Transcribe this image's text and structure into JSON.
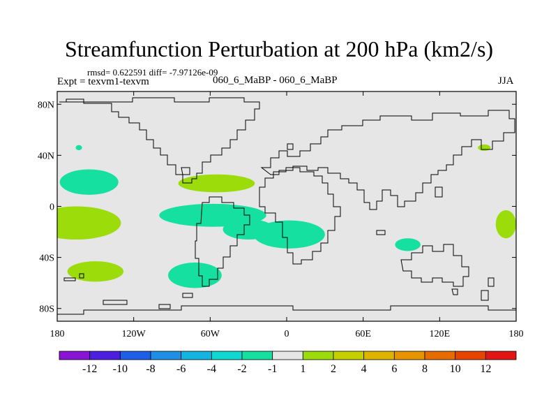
{
  "chart_data": {
    "type": "heatmap",
    "title": "Streamfunction Perturbation at 200 hPa (km2/s)",
    "stats_text": "rmsd= 0.622591  diff= -7.97126e-09",
    "experiment_label": "Expt = texvm1-texvm",
    "case_label": "060_6_MaBP - 060_6_MaBP",
    "season": "JJA",
    "projection": "cylindrical equidistant, 180 to 180 longitude",
    "x_range": [
      -180,
      180
    ],
    "y_range": [
      -90,
      90
    ],
    "x_ticks": [
      {
        "value": -180,
        "label": "180"
      },
      {
        "value": -120,
        "label": "120W"
      },
      {
        "value": -60,
        "label": "60W"
      },
      {
        "value": 0,
        "label": "0"
      },
      {
        "value": 60,
        "label": "60E"
      },
      {
        "value": 120,
        "label": "120E"
      },
      {
        "value": 180,
        "label": "180"
      }
    ],
    "y_ticks": [
      {
        "value": 80,
        "label": "80N"
      },
      {
        "value": 40,
        "label": "40N"
      },
      {
        "value": 0,
        "label": "0"
      },
      {
        "value": -40,
        "label": "40S"
      },
      {
        "value": -80,
        "label": "80S"
      }
    ],
    "background_class": "-1 to 1",
    "background_color": "#e6e6e6",
    "colorbar": {
      "colors": [
        "#8a14d6",
        "#4b1ee0",
        "#1e5ee8",
        "#1f8fe6",
        "#14b4e0",
        "#10d8d0",
        "#15e0a0",
        "#e6e6e6",
        "#9bdc0a",
        "#c4d000",
        "#deb400",
        "#e69400",
        "#e66c00",
        "#e64400",
        "#e21414"
      ],
      "labels": [
        "-12",
        "-10",
        "-8",
        "-6",
        "-4",
        "-2",
        "-1",
        "1",
        "2",
        "4",
        "6",
        "8",
        "10",
        "12"
      ]
    },
    "anomaly_patches": [
      {
        "class": "-1 to -2",
        "lon": -155,
        "lat": 19,
        "dlon": 23,
        "dlat": 10,
        "color": "#15e0a0"
      },
      {
        "class": "-1 to -2",
        "lon": -58,
        "lat": -7,
        "dlon": 42,
        "dlat": 9,
        "color": "#15e0a0"
      },
      {
        "class": "-1 to -2",
        "lon": 2,
        "lat": -22,
        "dlon": 28,
        "dlat": 11,
        "color": "#15e0a0"
      },
      {
        "class": "-1 to -2",
        "lon": -30,
        "lat": -18,
        "dlon": 20,
        "dlat": 8,
        "color": "#15e0a0"
      },
      {
        "class": "-1 to -2",
        "lon": -72,
        "lat": -54,
        "dlon": 21,
        "dlat": 10,
        "color": "#15e0a0"
      },
      {
        "class": "-1 to -2",
        "lon": 95,
        "lat": -30,
        "dlon": 10,
        "dlat": 5,
        "color": "#15e0a0"
      },
      {
        "class": "1 to 2",
        "lon": -165,
        "lat": -13,
        "dlon": 35,
        "dlat": 13,
        "color": "#9bdc0a"
      },
      {
        "class": "1 to 2",
        "lon": -150,
        "lat": -51,
        "dlon": 22,
        "dlat": 8,
        "color": "#9bdc0a"
      },
      {
        "class": "1 to 2",
        "lon": -55,
        "lat": 18,
        "dlon": 30,
        "dlat": 7,
        "color": "#9bdc0a"
      },
      {
        "class": "1 to 2",
        "lon": 172,
        "lat": -14,
        "dlon": 8,
        "dlat": 11,
        "color": "#9bdc0a"
      },
      {
        "class": "1 to 2",
        "lon": 155,
        "lat": 46,
        "dlon": 5,
        "dlat": 2.5,
        "color": "#9bdc0a"
      },
      {
        "class": "-1 to -2",
        "lon": -163,
        "lat": 46,
        "dlon": 2.5,
        "dlat": 2,
        "color": "#15e0a0"
      }
    ]
  }
}
